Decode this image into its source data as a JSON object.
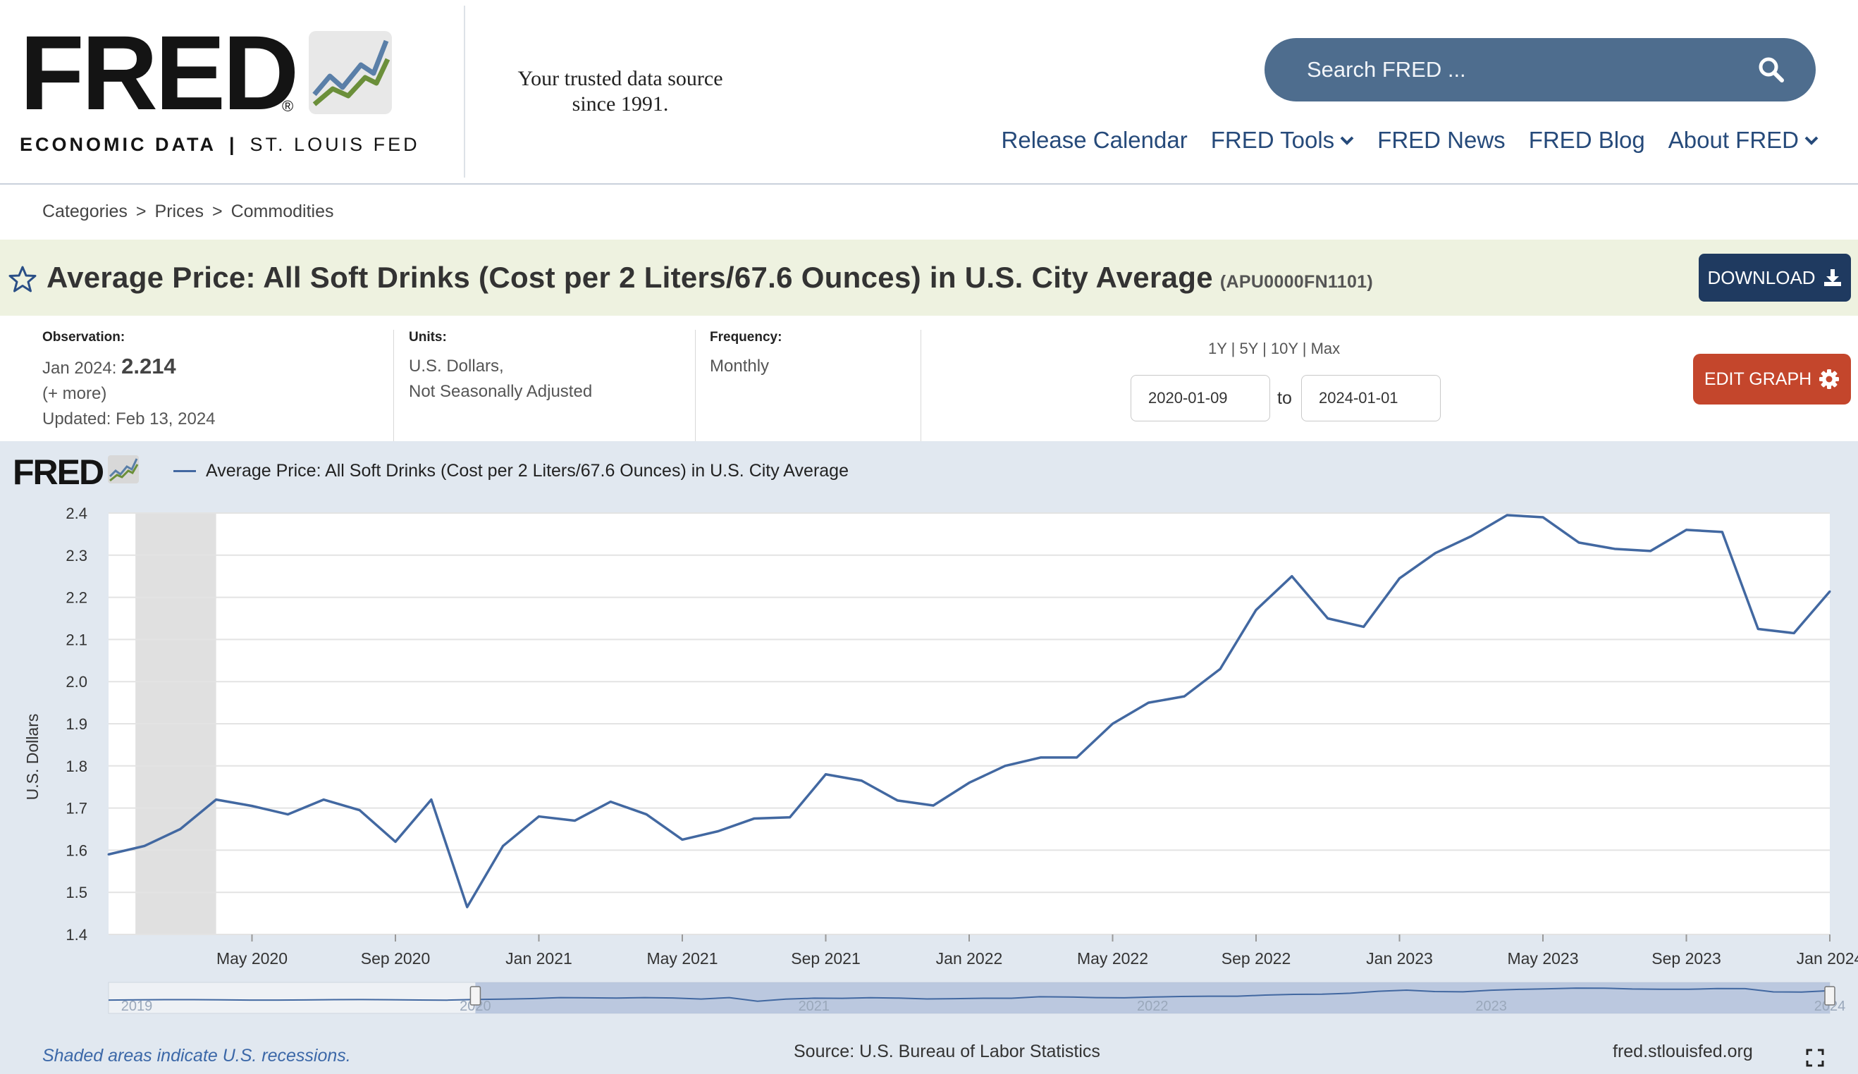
{
  "header": {
    "logo_word": "FRED",
    "logo_reg": "®",
    "logo_sub_left": "ECONOMIC DATA",
    "logo_sub_sep": "|",
    "logo_sub_right": "ST. LOUIS FED",
    "tagline_line1": "Your trusted data source",
    "tagline_line2": "since 1991.",
    "search_placeholder": "Search FRED ...",
    "nav": [
      {
        "label": "Release Calendar",
        "dropdown": false
      },
      {
        "label": "FRED Tools",
        "dropdown": true
      },
      {
        "label": "FRED News",
        "dropdown": false
      },
      {
        "label": "FRED Blog",
        "dropdown": false
      },
      {
        "label": "About FRED",
        "dropdown": true
      }
    ]
  },
  "breadcrumb": [
    "Categories",
    "Prices",
    "Commodities"
  ],
  "breadcrumb_sep": ">",
  "series": {
    "title": "Average Price: All Soft Drinks (Cost per 2 Liters/67.6 Ounces) in U.S. City Average",
    "id": "(APU0000FN1101)",
    "download_label": "DOWNLOAD"
  },
  "meta": {
    "observation_label": "Observation:",
    "observation_date": "Jan 2024:",
    "observation_value": "2.214",
    "more": "(+ more)",
    "updated": "Updated: Feb 13, 2024",
    "units_label": "Units:",
    "units_line1": "U.S. Dollars,",
    "units_line2": "Not Seasonally Adjusted",
    "frequency_label": "Frequency:",
    "frequency_value": "Monthly"
  },
  "range": {
    "links": "1Y | 5Y | 10Y | Max",
    "start": "2020-01-09",
    "to": "to",
    "end": "2024-01-01",
    "edit_label": "EDIT GRAPH"
  },
  "graph": {
    "legend_label": "Average Price: All Soft Drinks (Cost per 2 Liters/67.6 Ounces) in U.S. City Average",
    "recession_note": "Shaded areas indicate U.S. recessions.",
    "source": "Source: U.S. Bureau of Labor Statistics",
    "url": "fred.stlouisfed.org"
  },
  "colors": {
    "line": "#4268a1",
    "panel": "#e1e8f0",
    "recession": "#e0e0e0",
    "navy": "#1f3a60",
    "edit": "#c4462c"
  },
  "chart_data": {
    "type": "line",
    "ylabel": "U.S. Dollars",
    "ylim": [
      1.4,
      2.4
    ],
    "y_ticks": [
      "1.4",
      "1.5",
      "1.6",
      "1.7",
      "1.8",
      "1.9",
      "2.0",
      "2.1",
      "2.2",
      "2.3",
      "2.4"
    ],
    "x_ticks": [
      "May 2020",
      "Sep 2020",
      "Jan 2021",
      "May 2021",
      "Sep 2021",
      "Jan 2022",
      "May 2022",
      "Sep 2022",
      "Jan 2023",
      "May 2023",
      "Sep 2023",
      "Jan 2024"
    ],
    "recession": [
      "2020-02",
      "2020-04"
    ],
    "series": [
      {
        "name": "Average Price: All Soft Drinks (Cost per 2 Liters/67.6 Ounces) in U.S. City Average",
        "x": [
          "2020-01",
          "2020-02",
          "2020-03",
          "2020-04",
          "2020-05",
          "2020-06",
          "2020-07",
          "2020-08",
          "2020-09",
          "2020-10",
          "2020-11",
          "2020-12",
          "2021-01",
          "2021-02",
          "2021-03",
          "2021-04",
          "2021-05",
          "2021-06",
          "2021-07",
          "2021-08",
          "2021-09",
          "2021-10",
          "2021-11",
          "2021-12",
          "2022-01",
          "2022-02",
          "2022-03",
          "2022-04",
          "2022-05",
          "2022-06",
          "2022-07",
          "2022-08",
          "2022-09",
          "2022-10",
          "2022-11",
          "2022-12",
          "2023-01",
          "2023-02",
          "2023-03",
          "2023-04",
          "2023-05",
          "2023-06",
          "2023-07",
          "2023-08",
          "2023-09",
          "2023-10",
          "2023-11",
          "2023-12",
          "2024-01"
        ],
        "values": [
          1.59,
          1.61,
          1.65,
          1.72,
          1.705,
          1.685,
          1.72,
          1.695,
          1.62,
          1.72,
          1.465,
          1.61,
          1.68,
          1.67,
          1.715,
          1.685,
          1.625,
          1.645,
          1.675,
          1.678,
          1.78,
          1.765,
          1.718,
          1.706,
          1.76,
          1.8,
          1.82,
          1.82,
          1.9,
          1.95,
          1.965,
          2.03,
          2.17,
          2.25,
          2.15,
          2.13,
          2.245,
          2.305,
          2.345,
          2.395,
          2.39,
          2.33,
          2.315,
          2.31,
          2.36,
          2.355,
          2.125,
          2.115,
          2.214
        ]
      }
    ],
    "navigator_labels": [
      "2019",
      "2020",
      "2021",
      "2022",
      "2023",
      "2024"
    ]
  }
}
